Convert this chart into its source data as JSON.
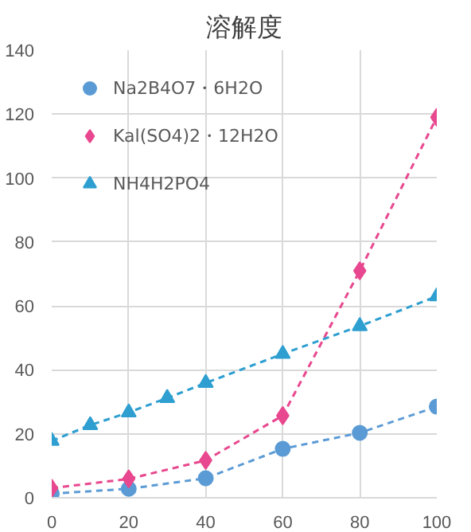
{
  "chart_data": {
    "type": "line",
    "title": "溶解度",
    "xlim": [
      0,
      100
    ],
    "xticks": [
      0,
      20,
      40,
      60,
      80,
      100
    ],
    "ylim": [
      0,
      140
    ],
    "yticks": [
      0,
      20,
      40,
      60,
      80,
      100,
      120,
      140
    ],
    "grid": true,
    "legend": "top left",
    "line_style": "dashed",
    "series": [
      {
        "name": "Na2B4O7・6H2O",
        "color": "#5b9bd5",
        "marker": "circle",
        "x": [
          0,
          20,
          40,
          60,
          80,
          100
        ],
        "values": [
          1.3,
          2.8,
          6.1,
          15.3,
          20.3,
          28.5
        ]
      },
      {
        "name": "Kal(SO4)2・12H2O",
        "color": "#e8488f",
        "marker": "diamond",
        "x": [
          0,
          20,
          40,
          60,
          80,
          100
        ],
        "values": [
          3,
          5.9,
          11.7,
          25.7,
          71,
          119
        ]
      },
      {
        "name": "NH4H2PO4",
        "color": "#2e9fd0",
        "marker": "triangle",
        "x": [
          0,
          10,
          20,
          30,
          40,
          60,
          80,
          100
        ],
        "values": [
          17.8,
          22.7,
          26.7,
          31.2,
          35.9,
          45,
          53.7,
          63
        ]
      }
    ]
  }
}
